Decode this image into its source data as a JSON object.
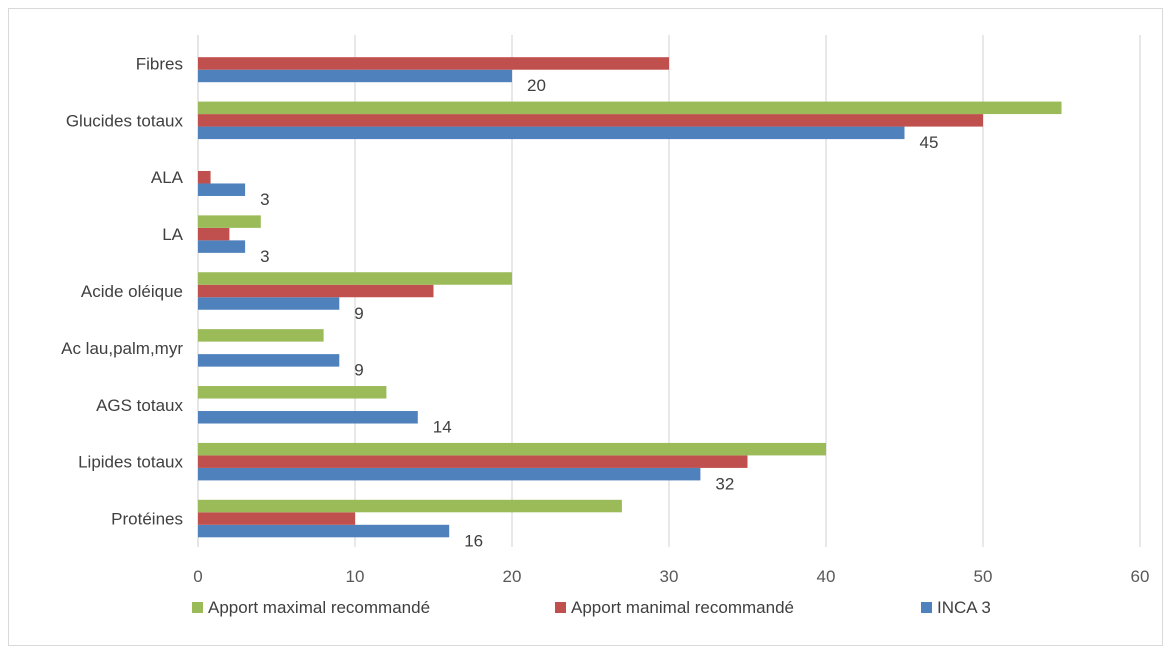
{
  "chart_data": {
    "type": "bar",
    "orientation": "horizontal",
    "categories": [
      "Protéines",
      "Lipides totaux",
      "AGS totaux",
      "Ac lau,palm,myr",
      "Acide oléique",
      "LA",
      "ALA",
      "Glucides totaux",
      "Fibres"
    ],
    "series": [
      {
        "name": "INCA 3",
        "color": "#4f81bd",
        "values": [
          16,
          32,
          14,
          9,
          9,
          3,
          3,
          45,
          20
        ],
        "labels_shown": true
      },
      {
        "name": "Apport manimal recommandé",
        "color": "#c0504d",
        "values": [
          10,
          35,
          null,
          null,
          15,
          2,
          0.8,
          50,
          30
        ],
        "labels_shown": false
      },
      {
        "name": "Apport maximal recommandé",
        "color": "#9bbb59",
        "values": [
          27,
          40,
          12,
          8,
          20,
          4,
          null,
          55,
          null
        ],
        "labels_shown": false
      }
    ],
    "xlim": [
      0,
      60
    ],
    "x_ticks": [
      0,
      10,
      20,
      30,
      40,
      50,
      60
    ],
    "grid": "vertical",
    "legend_position": "bottom",
    "legend_order": [
      "Apport maximal recommandé",
      "Apport manimal recommandé",
      "INCA 3"
    ]
  }
}
